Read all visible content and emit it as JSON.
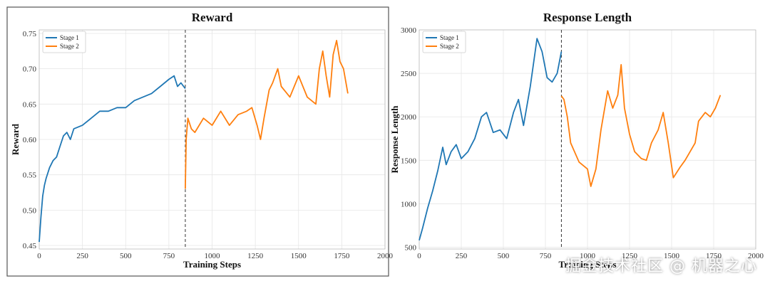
{
  "watermark": "掘金技术社区 @ 机器之心",
  "chart_data": [
    {
      "type": "line",
      "title": "Reward",
      "xlabel": "Training Steps",
      "ylabel": "Reward",
      "xlim": [
        0,
        2000
      ],
      "ylim": [
        0.445,
        0.755
      ],
      "xticks": [
        0,
        250,
        500,
        750,
        1000,
        1250,
        1500,
        1750,
        2000
      ],
      "yticks": [
        0.45,
        0.5,
        0.55,
        0.6,
        0.65,
        0.7,
        0.75
      ],
      "ytick_labels": [
        "0.45",
        "0.50",
        "0.55",
        "0.60",
        "0.65",
        "0.70",
        "0.75"
      ],
      "grid": true,
      "legend_position": "top-left",
      "stage_boundary_x": 845,
      "colors": {
        "stage1": "#1f77b4",
        "stage2": "#ff7f0e"
      },
      "series": [
        {
          "name": "Stage 1",
          "color": "#1f77b4",
          "x": [
            0,
            10,
            20,
            30,
            40,
            60,
            80,
            100,
            120,
            140,
            160,
            180,
            200,
            250,
            300,
            350,
            400,
            450,
            500,
            550,
            600,
            650,
            700,
            750,
            780,
            800,
            820,
            845
          ],
          "y": [
            0.455,
            0.49,
            0.52,
            0.535,
            0.545,
            0.56,
            0.57,
            0.575,
            0.59,
            0.605,
            0.61,
            0.6,
            0.615,
            0.62,
            0.63,
            0.64,
            0.64,
            0.645,
            0.645,
            0.655,
            0.66,
            0.665,
            0.675,
            0.685,
            0.69,
            0.675,
            0.68,
            0.672
          ]
        },
        {
          "name": "Stage 2",
          "color": "#ff7f0e",
          "x": [
            845,
            850,
            860,
            880,
            900,
            950,
            1000,
            1050,
            1100,
            1150,
            1200,
            1230,
            1260,
            1280,
            1300,
            1330,
            1350,
            1380,
            1400,
            1450,
            1500,
            1550,
            1600,
            1620,
            1640,
            1660,
            1680,
            1700,
            1720,
            1740,
            1760,
            1785
          ],
          "y": [
            0.53,
            0.6,
            0.63,
            0.615,
            0.61,
            0.63,
            0.62,
            0.64,
            0.62,
            0.635,
            0.64,
            0.645,
            0.62,
            0.6,
            0.63,
            0.67,
            0.68,
            0.7,
            0.675,
            0.66,
            0.69,
            0.66,
            0.65,
            0.7,
            0.725,
            0.69,
            0.66,
            0.72,
            0.74,
            0.71,
            0.7,
            0.665
          ]
        }
      ]
    },
    {
      "type": "line",
      "title": "Response Length",
      "xlabel": "Training Steps",
      "ylabel": "Response Length",
      "xlim": [
        0,
        2000
      ],
      "ylim": [
        480,
        3000
      ],
      "xticks": [
        0,
        250,
        500,
        750,
        1000,
        1250,
        1500,
        1750,
        2000
      ],
      "yticks": [
        500,
        1000,
        1500,
        2000,
        2500,
        3000
      ],
      "ytick_labels": [
        "500",
        "1000",
        "1500",
        "2000",
        "2500",
        "3000"
      ],
      "grid": true,
      "legend_position": "top-left",
      "stage_boundary_x": 845,
      "colors": {
        "stage1": "#1f77b4",
        "stage2": "#ff7f0e"
      },
      "series": [
        {
          "name": "Stage 1",
          "color": "#1f77b4",
          "x": [
            0,
            20,
            50,
            80,
            110,
            140,
            160,
            190,
            220,
            250,
            290,
            330,
            370,
            400,
            440,
            480,
            520,
            560,
            590,
            620,
            660,
            700,
            730,
            760,
            790,
            820,
            845
          ],
          "y": [
            580,
            720,
            950,
            1150,
            1380,
            1650,
            1450,
            1600,
            1680,
            1520,
            1600,
            1750,
            2000,
            2050,
            1820,
            1850,
            1750,
            2050,
            2200,
            1900,
            2350,
            2900,
            2750,
            2450,
            2400,
            2500,
            2750
          ]
        },
        {
          "name": "Stage 2",
          "color": "#ff7f0e",
          "x": [
            845,
            860,
            880,
            900,
            950,
            1000,
            1020,
            1050,
            1080,
            1120,
            1150,
            1180,
            1200,
            1220,
            1250,
            1280,
            1320,
            1350,
            1380,
            1420,
            1450,
            1480,
            1510,
            1550,
            1580,
            1610,
            1640,
            1660,
            1700,
            1730,
            1760,
            1790
          ],
          "y": [
            2240,
            2200,
            2000,
            1700,
            1480,
            1400,
            1200,
            1400,
            1850,
            2300,
            2100,
            2250,
            2600,
            2100,
            1800,
            1600,
            1520,
            1500,
            1700,
            1850,
            2050,
            1700,
            1300,
            1420,
            1500,
            1600,
            1700,
            1950,
            2050,
            2000,
            2100,
            2250
          ]
        }
      ]
    }
  ]
}
